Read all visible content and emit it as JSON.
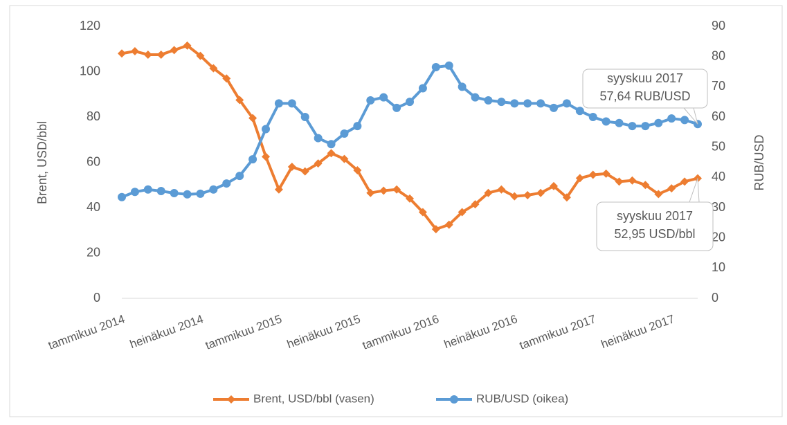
{
  "chart_data": {
    "type": "line",
    "categories": [
      "tammikuu 2014",
      null,
      null,
      null,
      null,
      null,
      "heinäkuu 2014",
      null,
      null,
      null,
      null,
      null,
      "tammikuu 2015",
      null,
      null,
      null,
      null,
      null,
      "heinäkuu 2015",
      null,
      null,
      null,
      null,
      null,
      "tammikuu 2016",
      null,
      null,
      null,
      null,
      null,
      "heinäkuu 2016",
      null,
      null,
      null,
      null,
      null,
      "tammikuu 2017",
      null,
      null,
      null,
      null,
      null,
      "heinäkuu 2017",
      null,
      null
    ],
    "series": [
      {
        "name": "Brent, USD/bbl (vasen)",
        "color": "#ed7d31",
        "marker": "diamond",
        "values": [
          108,
          109,
          107.5,
          107.5,
          109.5,
          111.5,
          107,
          101.5,
          97,
          87.5,
          79.5,
          62.5,
          48,
          58,
          56,
          59.5,
          64,
          61.5,
          56.5,
          46.5,
          47.5,
          48,
          44,
          38,
          30.5,
          32.5,
          38,
          41.5,
          46.5,
          48,
          45,
          45.5,
          46.5,
          49.5,
          44.5,
          53,
          54.5,
          55,
          51.5,
          52,
          50,
          46,
          48.5,
          51.5,
          52.95
        ]
      },
      {
        "name": "RUB/USD (oikea)",
        "color": "#5b9bd5",
        "marker": "circle",
        "axis": "y2",
        "values": [
          33.5,
          35.2,
          36,
          35.5,
          34.8,
          34.4,
          34.6,
          36,
          38,
          40.5,
          46,
          56,
          64.5,
          64.5,
          60,
          53,
          51,
          54.5,
          57,
          65.5,
          66.5,
          63,
          65,
          69.5,
          76.5,
          77,
          70,
          66.5,
          65.5,
          65,
          64.5,
          64.5,
          64.5,
          63,
          64.5,
          62,
          60,
          58.5,
          58,
          57,
          57,
          58,
          59.5,
          59,
          57.64
        ]
      }
    ],
    "ylabel": "Brent, USD/bbl",
    "y2label": "RUB/USD",
    "ylim": [
      0,
      120
    ],
    "yticks": [
      0,
      20,
      40,
      60,
      80,
      100,
      120
    ],
    "y2lim": [
      0,
      90
    ],
    "y2ticks": [
      0,
      10,
      20,
      30,
      40,
      50,
      60,
      70,
      80,
      90
    ],
    "legend": "bottom",
    "annotations": [
      {
        "lines": [
          "syyskuu 2017",
          "57,64 RUB/USD"
        ]
      },
      {
        "lines": [
          "syyskuu 2017",
          "52,95 USD/bbl"
        ]
      }
    ]
  }
}
